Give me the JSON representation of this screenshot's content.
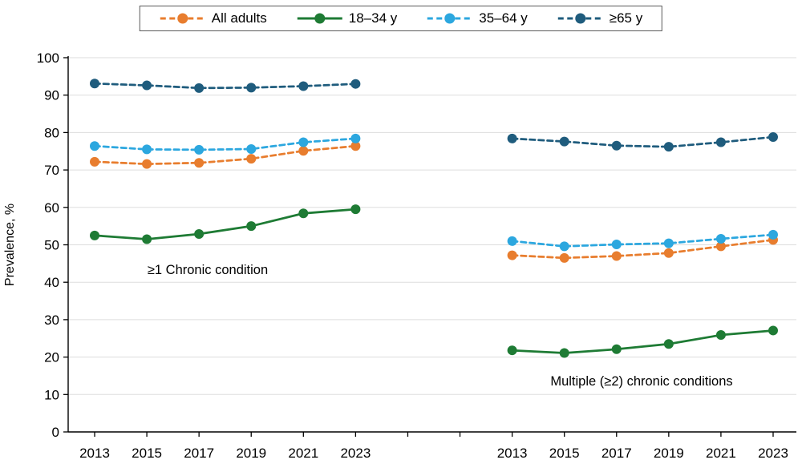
{
  "figure": {
    "background": "#ffffff"
  },
  "legend": {
    "items": [
      {
        "label": "All adults",
        "color": "#E87D2E",
        "dashed": true
      },
      {
        "label": "18–34 y",
        "color": "#1E7B34",
        "dashed": false
      },
      {
        "label": "35–64 y",
        "color": "#2CA7DF",
        "dashed": true
      },
      {
        "label": "≥65 y",
        "color": "#1F5C7D",
        "dashed": true
      }
    ]
  },
  "chart_data": {
    "type": "line",
    "title": "",
    "xlabel": "",
    "ylabel": "Prevalence, %",
    "ylim": [
      0,
      100
    ],
    "ytick_step": 10,
    "grid": true,
    "legend_position": "top",
    "gridline_color": "#DDDDDD",
    "axis_color": "#000000",
    "categories": [
      "2013",
      "2015",
      "2017",
      "2019",
      "2021",
      "2023"
    ],
    "panels": [
      {
        "annotation": "≥1 Chronic condition",
        "series": [
          {
            "name": "All adults",
            "color": "#E87D2E",
            "dashed": true,
            "values": [
              72.2,
              71.6,
              71.9,
              73.0,
              75.1,
              76.4
            ]
          },
          {
            "name": "18–34 y",
            "color": "#1E7B34",
            "dashed": false,
            "values": [
              52.5,
              51.5,
              52.9,
              55.0,
              58.4,
              59.5
            ]
          },
          {
            "name": "35–64 y",
            "color": "#2CA7DF",
            "dashed": true,
            "values": [
              76.4,
              75.5,
              75.4,
              75.6,
              77.4,
              78.4
            ]
          },
          {
            "name": "≥65 y",
            "color": "#1F5C7D",
            "dashed": true,
            "values": [
              93.1,
              92.6,
              91.9,
              92.0,
              92.4,
              93.0
            ]
          }
        ]
      },
      {
        "annotation": "Multiple (≥2) chronic conditions",
        "series": [
          {
            "name": "All adults",
            "color": "#E87D2E",
            "dashed": true,
            "values": [
              47.2,
              46.5,
              47.0,
              47.8,
              49.6,
              51.3
            ]
          },
          {
            "name": "18–34 y",
            "color": "#1E7B34",
            "dashed": false,
            "values": [
              21.8,
              21.1,
              22.1,
              23.5,
              25.9,
              27.1
            ]
          },
          {
            "name": "35–64 y",
            "color": "#2CA7DF",
            "dashed": true,
            "values": [
              51.0,
              49.6,
              50.1,
              50.4,
              51.6,
              52.7
            ]
          },
          {
            "name": "≥65 y",
            "color": "#1F5C7D",
            "dashed": true,
            "values": [
              78.4,
              77.6,
              76.5,
              76.2,
              77.4,
              78.8
            ]
          }
        ]
      }
    ]
  }
}
